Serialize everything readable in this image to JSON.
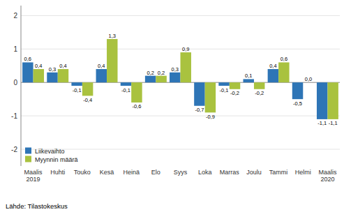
{
  "chart_data": {
    "type": "bar",
    "categories": [
      "Maalis\n2019",
      "Huhti",
      "Touko",
      "Kesä",
      "Heinä",
      "Elo",
      "Syys",
      "Loka",
      "Marras",
      "Joulu",
      "Tammi",
      "Helmi",
      "Maalis\n2020"
    ],
    "series": [
      {
        "name": "Liikevaihto",
        "color": "#2E75B6",
        "values": [
          0.6,
          0.3,
          -0.1,
          0.4,
          -0.1,
          0.2,
          0.3,
          -0.7,
          -0.1,
          0.1,
          0.4,
          -0.5,
          -1.1
        ],
        "value_labels": [
          "0,6",
          "0,3",
          "-0,1",
          "0,4",
          "-0,1",
          "0,2",
          "0,3",
          "-0,7",
          "-0,1",
          "0,1",
          "0,4",
          "-0,5",
          "-1,1"
        ]
      },
      {
        "name": "Myynnin määrä",
        "color": "#A9C23F",
        "values": [
          0.4,
          0.4,
          -0.4,
          1.3,
          -0.6,
          0.2,
          0.9,
          -0.9,
          -0.2,
          -0.2,
          0.6,
          0.0,
          -1.1
        ],
        "value_labels": [
          "0,4",
          "0,4",
          "-0,4",
          "1,3",
          "-0,6",
          "0,2",
          "0,9",
          "-0,9",
          "-0,2",
          "-0,2",
          "0,6",
          "0,0",
          "-1,1"
        ]
      }
    ],
    "ylim": [
      -2.5,
      2.3
    ],
    "yticks": [
      -2,
      -1,
      0,
      1,
      2
    ],
    "grid": true,
    "legend": "lower left",
    "data_labels": true,
    "annotations": [
      "Lähde: Tilastokeskus"
    ]
  }
}
